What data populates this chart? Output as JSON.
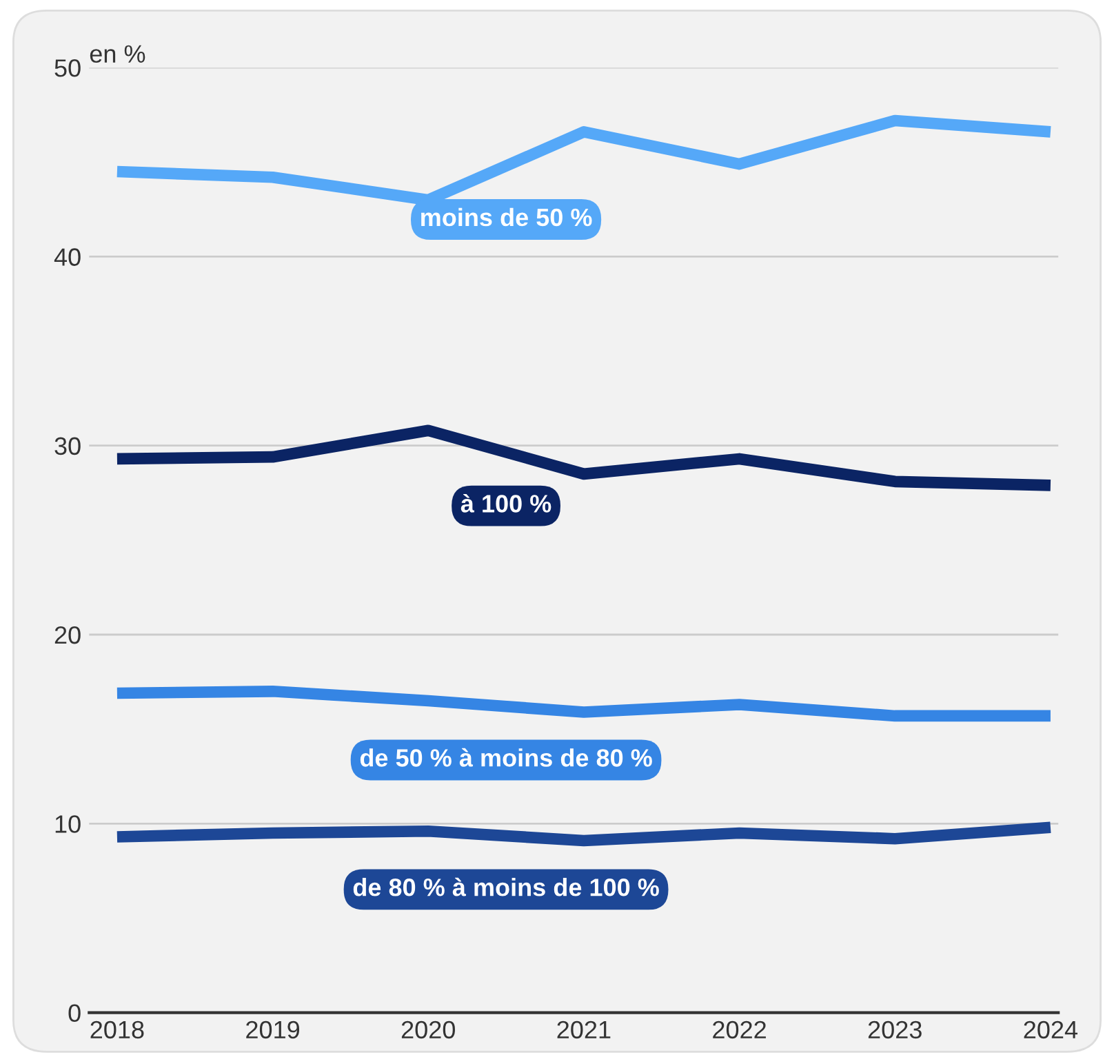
{
  "chart_data": {
    "type": "line",
    "ylabel": "en %",
    "categories": [
      "2018",
      "2019",
      "2020",
      "2021",
      "2022",
      "2023",
      "2024"
    ],
    "ylim": [
      0,
      50
    ],
    "yticks": [
      0,
      10,
      20,
      30,
      40,
      50
    ],
    "grid": "y",
    "legend": false,
    "marker": "none",
    "line_style": "solid",
    "series": [
      {
        "name": "moins de 50 %",
        "color": "#55a8f8",
        "values": [
          44.5,
          44.2,
          43.0,
          46.6,
          44.9,
          47.2,
          46.6
        ]
      },
      {
        "name": "à 100 %",
        "color": "#0b2464",
        "values": [
          29.3,
          29.4,
          30.8,
          28.5,
          29.3,
          28.1,
          27.9
        ]
      },
      {
        "name": "de 50 % à moins de 80 %",
        "color": "#3585e4",
        "values": [
          16.9,
          17.0,
          16.5,
          15.9,
          16.3,
          15.7,
          15.7
        ]
      },
      {
        "name": "de 80 % à moins de 100 %",
        "color": "#1d4796",
        "values": [
          9.3,
          9.5,
          9.6,
          9.1,
          9.5,
          9.2,
          9.8
        ]
      }
    ]
  }
}
